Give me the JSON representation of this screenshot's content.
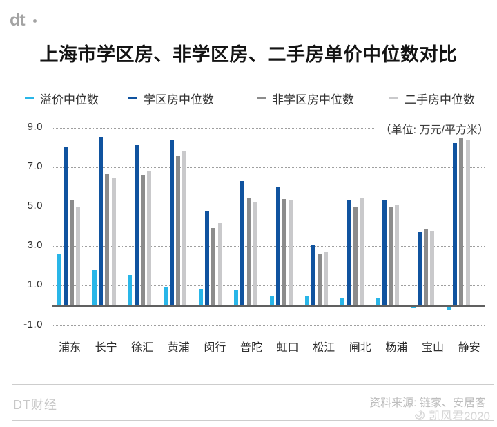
{
  "header": {
    "logo": "dt",
    "title": "上海市学区房、非学区房、二手房单价中位数对比"
  },
  "chart_data": {
    "type": "bar",
    "title": "上海市学区房、非学区房、二手房单价中位数对比",
    "unit_label": "（单位: 万元/平方米）",
    "xlabel": "",
    "ylabel": "万元/平方米",
    "categories": [
      "浦东",
      "长宁",
      "徐汇",
      "黄浦",
      "闵行",
      "普陀",
      "虹口",
      "松江",
      "闸北",
      "杨浦",
      "宝山",
      "静安"
    ],
    "series": [
      {
        "key": "premium",
        "name": "溢价中位数",
        "color": "#29b6e8",
        "values": [
          2.6,
          1.8,
          1.55,
          0.9,
          0.85,
          0.8,
          0.5,
          0.45,
          0.35,
          0.35,
          -0.15,
          -0.25
        ]
      },
      {
        "key": "school",
        "name": "学区房中位数",
        "color": "#10539f",
        "values": [
          8.0,
          8.5,
          8.1,
          8.4,
          4.8,
          6.3,
          6.0,
          3.05,
          5.3,
          5.3,
          3.7,
          8.2
        ]
      },
      {
        "key": "nonschool",
        "name": "非学区房中位数",
        "color": "#8c8c8c",
        "values": [
          5.35,
          6.65,
          6.6,
          7.55,
          3.9,
          5.45,
          5.4,
          2.6,
          5.0,
          5.0,
          3.85,
          8.45
        ]
      },
      {
        "key": "secondhand",
        "name": "二手房中位数",
        "color": "#c9c9cb",
        "values": [
          5.0,
          6.45,
          6.8,
          7.8,
          4.15,
          5.2,
          5.3,
          2.7,
          5.45,
          5.1,
          3.75,
          8.35
        ]
      }
    ],
    "yticks": [
      9.0,
      7.0,
      5.0,
      3.0,
      1.0,
      -1.0
    ],
    "ylim": [
      -1.0,
      9.0
    ],
    "grid": "horizontal-dotted",
    "legend_position": "top"
  },
  "footer": {
    "brand": "DT财经",
    "source": "资料来源: 链家、安居客",
    "watermark": "凯风君2020"
  }
}
